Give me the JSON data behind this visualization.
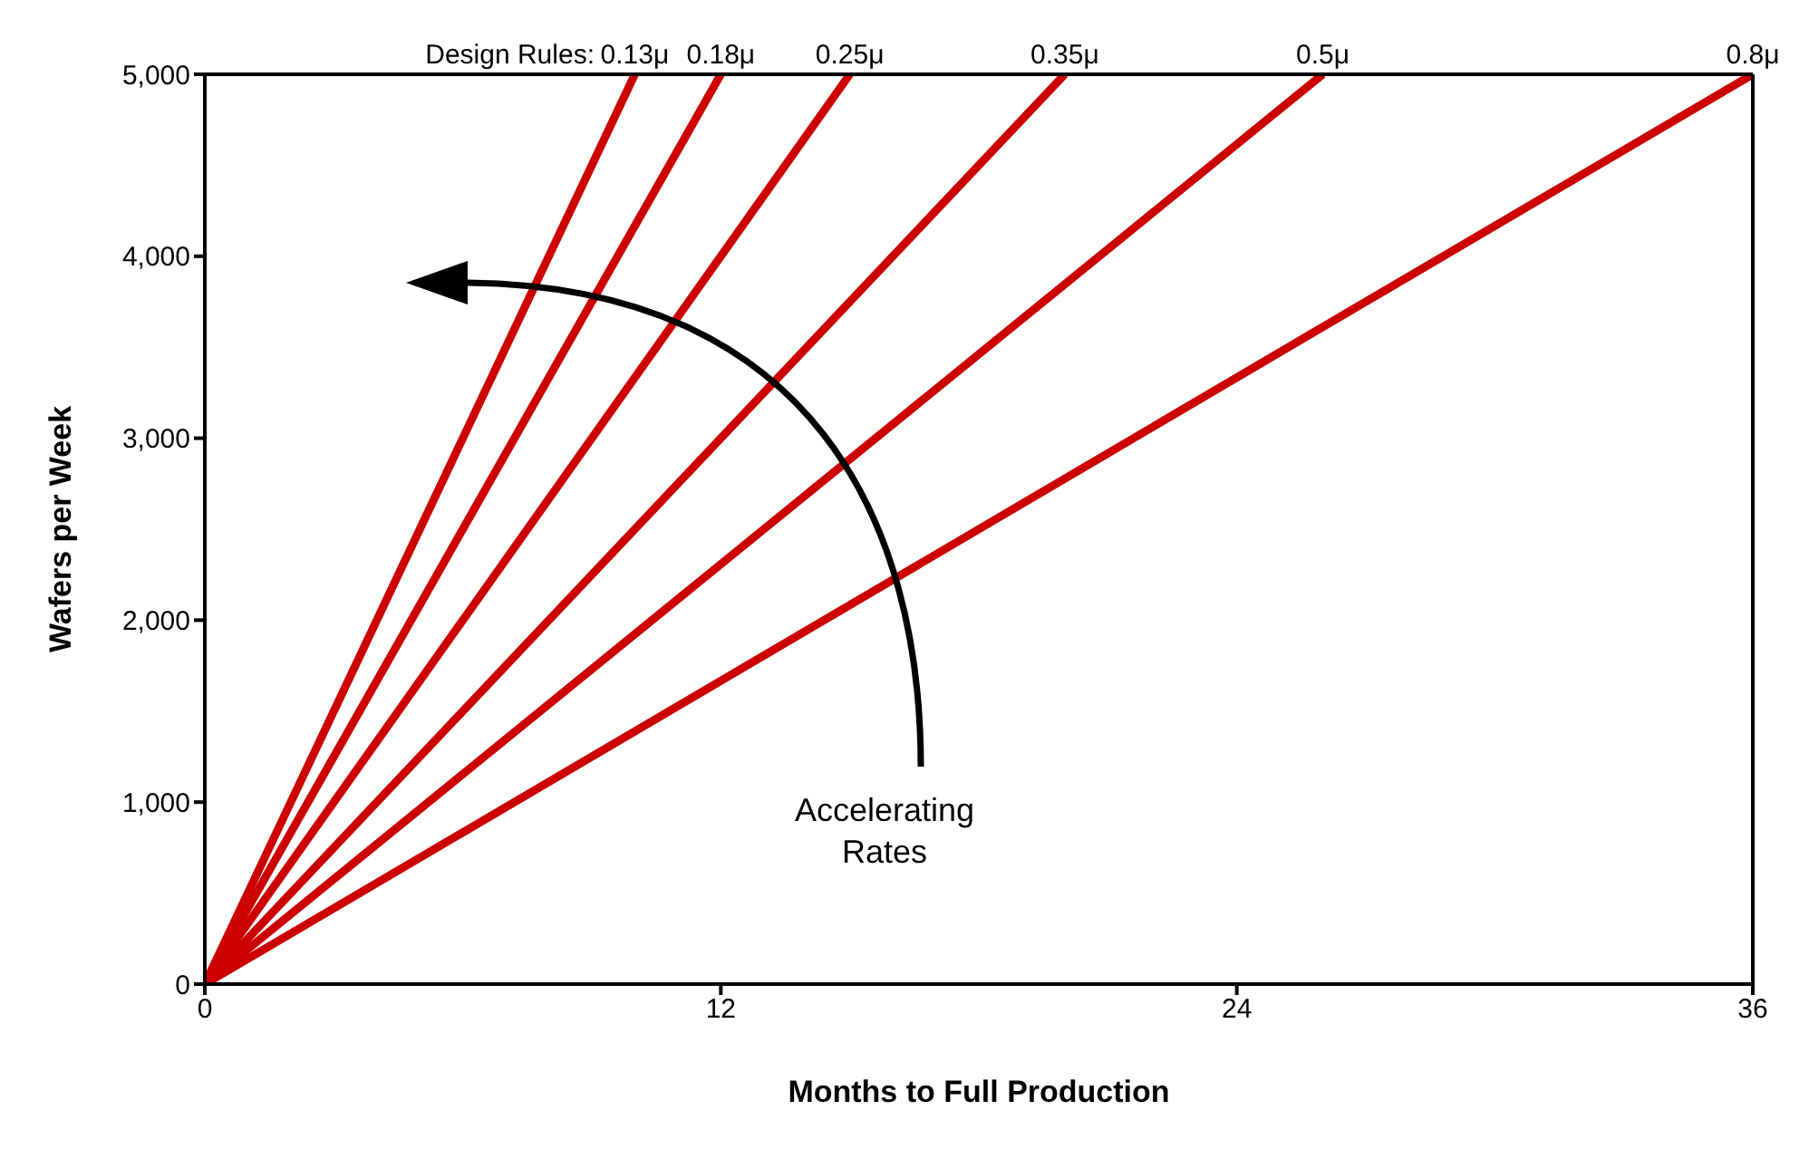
{
  "chart_data": {
    "type": "line",
    "xlabel": "Months to Full Production",
    "ylabel": "Wafers per Week",
    "legend_title": "Design Rules:",
    "xlim": [
      0,
      36
    ],
    "xticks": [
      0,
      12,
      24,
      36
    ],
    "ylim": [
      0,
      5000
    ],
    "yticks": [
      0,
      {
        "value": 1000,
        "label": "1,000"
      },
      {
        "value": 2000,
        "label": "2,000"
      },
      {
        "value": 3000,
        "label": "3,000"
      },
      {
        "value": 4000,
        "label": "4,000"
      },
      {
        "value": 5000,
        "label": "5,000"
      }
    ],
    "grid": false,
    "marker": "none",
    "line_style": "solid",
    "series": [
      {
        "name": "0.13μ",
        "color": "#cc0000",
        "x": [
          0,
          10
        ],
        "values": [
          0,
          5000
        ]
      },
      {
        "name": "0.18μ",
        "color": "#cc0000",
        "x": [
          0,
          12
        ],
        "values": [
          0,
          5000
        ]
      },
      {
        "name": "0.25μ",
        "color": "#cc0000",
        "x": [
          0,
          15
        ],
        "values": [
          0,
          5000
        ]
      },
      {
        "name": "0.35μ",
        "color": "#cc0000",
        "x": [
          0,
          20
        ],
        "values": [
          0,
          5000
        ]
      },
      {
        "name": "0.5μ",
        "color": "#cc0000",
        "x": [
          0,
          26
        ],
        "values": [
          0,
          5000
        ]
      },
      {
        "name": "0.8μ",
        "color": "#cc0000",
        "x": [
          0,
          36
        ],
        "values": [
          0,
          5000
        ]
      }
    ],
    "annotations": [
      "Accelerating\nRates"
    ]
  }
}
